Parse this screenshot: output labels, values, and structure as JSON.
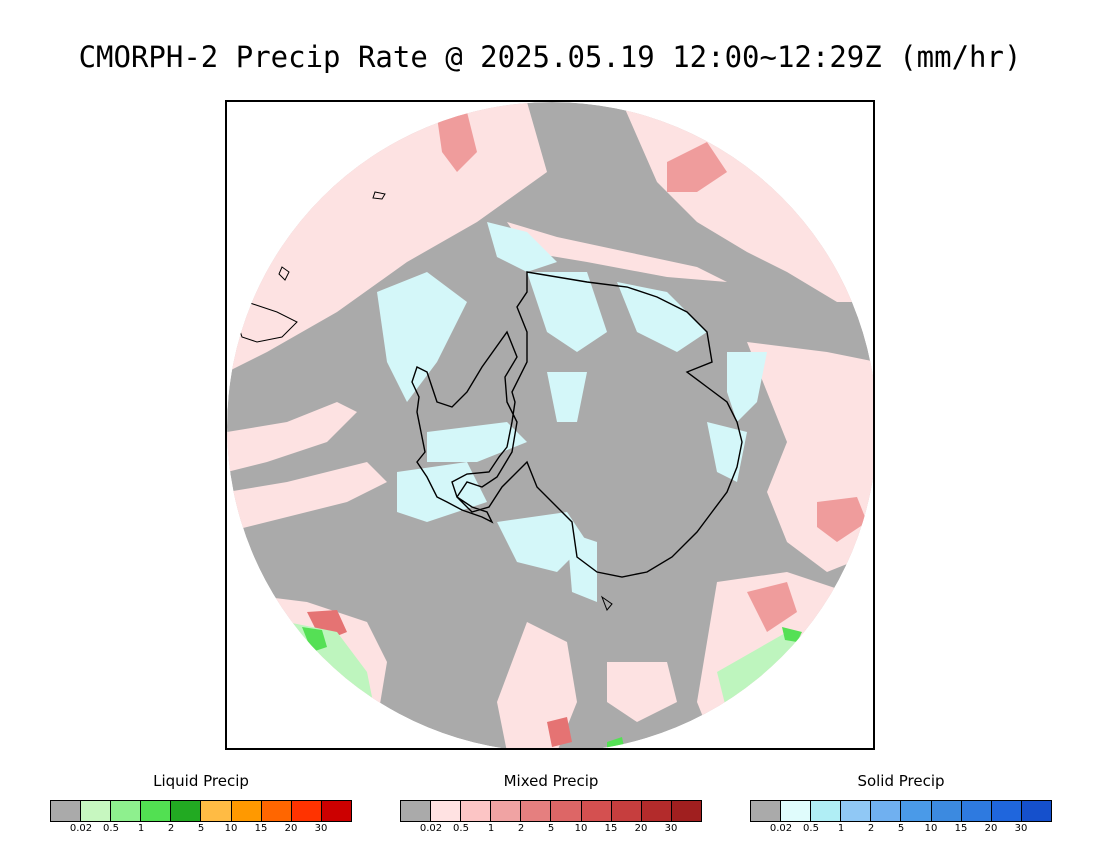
{
  "title": "CMORPH-2 Precip Rate @ 2025.05.19 12:00~12:29Z (mm/hr)",
  "map": {
    "projection": "south-polar-stereographic",
    "background_color": "#aaaaaa",
    "colors": {
      "liquid_light": "#bef5be",
      "liquid_med": "#55e055",
      "mixed_light": "#fde2e2",
      "mixed_med": "#f0a3a3",
      "mixed_strong": "#e57373",
      "solid_light": "#d4f7f9",
      "coastline": "#000000"
    }
  },
  "legends": [
    {
      "title": "Liquid Precip",
      "colors": [
        "#aaaaaa",
        "#c7f7c0",
        "#8ef08e",
        "#52e052",
        "#22aa22",
        "#ffbb44",
        "#ff9900",
        "#ff6600",
        "#ff3300",
        "#cc0000"
      ],
      "ticks": [
        "0.02",
        "0.5",
        "1",
        "2",
        "5",
        "10",
        "15",
        "20",
        "30"
      ]
    },
    {
      "title": "Mixed Precip",
      "colors": [
        "#aaaaaa",
        "#ffe2e2",
        "#fcc5c5",
        "#f0a3a3",
        "#e57f7f",
        "#dd6666",
        "#d45050",
        "#c63e3e",
        "#b32b2b",
        "#a01f1f"
      ],
      "ticks": [
        "0.02",
        "0.5",
        "1",
        "2",
        "5",
        "10",
        "15",
        "20",
        "30"
      ]
    },
    {
      "title": "Solid Precip",
      "colors": [
        "#aaaaaa",
        "#e0fcfc",
        "#b0eef5",
        "#90c8f5",
        "#70b0f0",
        "#4a9ae8",
        "#3c8ae0",
        "#2e7ae0",
        "#1f66dd",
        "#1550cc"
      ],
      "ticks": [
        "0.02",
        "0.5",
        "1",
        "2",
        "5",
        "10",
        "15",
        "20",
        "30"
      ]
    }
  ]
}
